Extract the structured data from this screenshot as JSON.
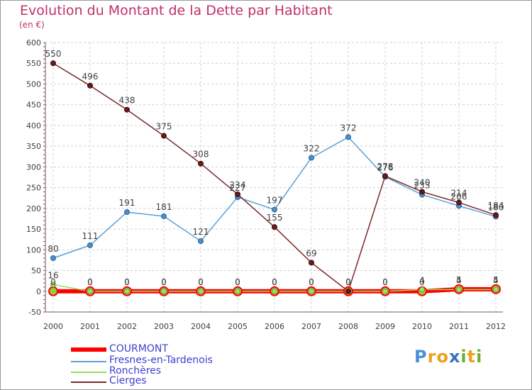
{
  "title": "Evolution du Montant de la Dette par Habitant",
  "unit_label": "(en €)",
  "logo": {
    "letters": [
      "P",
      "r",
      "o",
      "x",
      "i",
      "t",
      "i"
    ],
    "colors": [
      "#4a90d9",
      "#f0a020",
      "#f0a020",
      "#3a70c0",
      "#70b030",
      "#f0a020",
      "#70b030"
    ]
  },
  "chart_data": {
    "type": "line",
    "x": [
      "2000",
      "2001",
      "2002",
      "2003",
      "2004",
      "2005",
      "2006",
      "2007",
      "2008",
      "2009",
      "2010",
      "2011",
      "2012"
    ],
    "ylim": [
      -50,
      600
    ],
    "yticks": [
      -50,
      0,
      50,
      100,
      150,
      200,
      250,
      300,
      350,
      400,
      450,
      500,
      550,
      600
    ],
    "grid": true,
    "legend_position": "bottom-left",
    "series": [
      {
        "name": "COURMONT",
        "color": "#ff0000",
        "line_width": 6,
        "values": [
          0,
          0,
          0,
          0,
          0,
          0,
          0,
          0,
          0,
          0,
          0,
          5,
          5
        ],
        "labels": [
          "0",
          "0",
          "0",
          "0",
          "0",
          "0",
          "0",
          "0",
          "0",
          "0",
          "0",
          "5",
          "5"
        ]
      },
      {
        "name": "Fresnes-en-Tardenois",
        "color": "#5aa0d8",
        "line_width": 1.5,
        "values": [
          80,
          111,
          191,
          181,
          121,
          227,
          197,
          322,
          372,
          276,
          233,
          206,
          180
        ],
        "labels": [
          "80",
          "111",
          "191",
          "181",
          "121",
          "227",
          "197",
          "322",
          "372",
          "276",
          "233",
          "206",
          "180"
        ]
      },
      {
        "name": "Ronchères",
        "color": "#90e060",
        "line_width": 1.5,
        "values": [
          16,
          0,
          0,
          0,
          0,
          0,
          0,
          0,
          0,
          0,
          4,
          4,
          4
        ],
        "labels": [
          "16",
          "0",
          "0",
          "0",
          "0",
          "0",
          "0",
          "0",
          "0",
          "0",
          "4",
          "4",
          "4"
        ]
      },
      {
        "name": "Cierges",
        "color": "#7a2a2a",
        "line_width": 1.5,
        "values": [
          550,
          496,
          438,
          375,
          308,
          234,
          155,
          69,
          0,
          278,
          240,
          214,
          184
        ],
        "labels": [
          "550",
          "496",
          "438",
          "375",
          "308",
          "234",
          "155",
          "69",
          "0",
          "278",
          "240",
          "214",
          "184"
        ]
      }
    ]
  }
}
